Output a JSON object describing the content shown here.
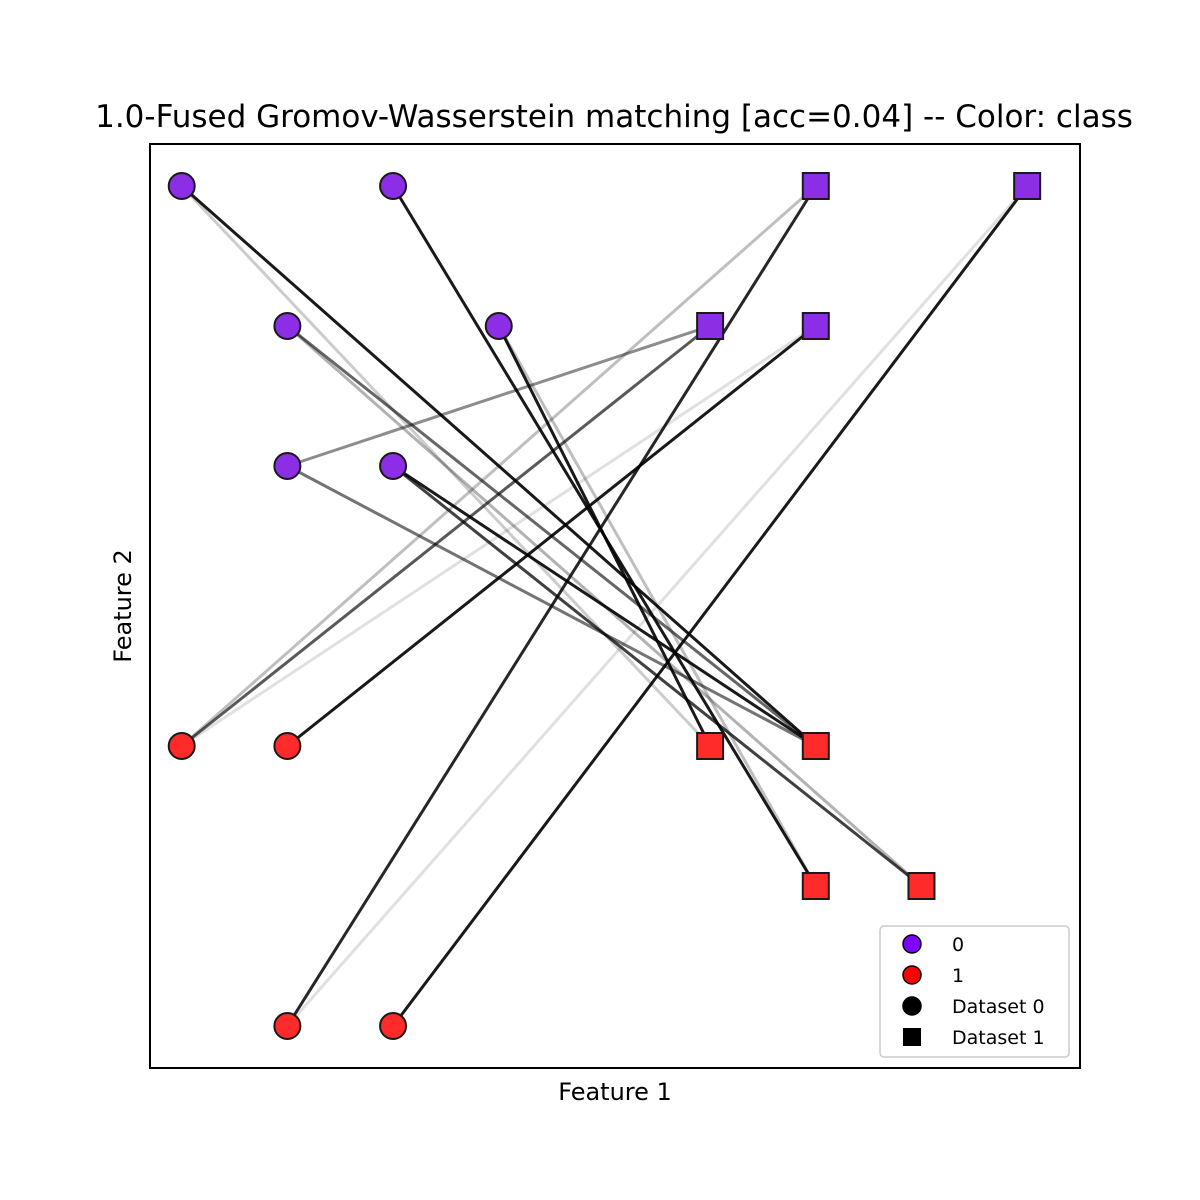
{
  "chart_data": {
    "type": "scatter",
    "title": "1.0-Fused Gromov-Wasserstein matching [acc=0.04] -- Color: class",
    "xlabel": "Feature 1",
    "ylabel": "Feature 2",
    "xlim": [
      -0.3,
      8.5
    ],
    "ylim": [
      -1.3,
      5.3
    ],
    "xticks_visible": false,
    "yticks_visible": false,
    "grid": false,
    "legend_position": "lower-right",
    "class_colors": {
      "0": "#8c2ee6",
      "1": "#ff2b2b"
    },
    "marker_edge_color": "#1a1a1a",
    "legend": [
      {
        "label": "0",
        "marker": "circle",
        "color": "#8000ff"
      },
      {
        "label": "1",
        "marker": "circle",
        "color": "#ff0000"
      },
      {
        "label": "Dataset 0",
        "marker": "circle",
        "color": "#000000"
      },
      {
        "label": "Dataset 1",
        "marker": "square",
        "color": "#000000"
      }
    ],
    "series": [
      {
        "name": "Dataset 0",
        "marker": "circle",
        "points": [
          {
            "x": 0,
            "y": 5,
            "class": 0
          },
          {
            "x": 2,
            "y": 5,
            "class": 0
          },
          {
            "x": 1,
            "y": 4,
            "class": 0
          },
          {
            "x": 3,
            "y": 4,
            "class": 0
          },
          {
            "x": 1,
            "y": 3,
            "class": 0
          },
          {
            "x": 2,
            "y": 3,
            "class": 0
          },
          {
            "x": 0,
            "y": 1,
            "class": 1
          },
          {
            "x": 1,
            "y": 1,
            "class": 1
          },
          {
            "x": 1,
            "y": -1,
            "class": 1
          },
          {
            "x": 2,
            "y": -1,
            "class": 1
          }
        ]
      },
      {
        "name": "Dataset 1",
        "marker": "square",
        "points": [
          {
            "x": 6,
            "y": 5,
            "class": 0
          },
          {
            "x": 8,
            "y": 5,
            "class": 0
          },
          {
            "x": 5,
            "y": 4,
            "class": 0
          },
          {
            "x": 6,
            "y": 4,
            "class": 0
          },
          {
            "x": 5,
            "y": 1,
            "class": 1
          },
          {
            "x": 6,
            "y": 1,
            "class": 1
          },
          {
            "x": 6,
            "y": 0,
            "class": 1
          },
          {
            "x": 7,
            "y": 0,
            "class": 1
          }
        ]
      }
    ],
    "matching": [
      {
        "from": 0,
        "to": 5,
        "weight": 0.9
      },
      {
        "from": 0,
        "to": 4,
        "weight": 0.2
      },
      {
        "from": 1,
        "to": 6,
        "weight": 0.9
      },
      {
        "from": 2,
        "to": 5,
        "weight": 0.6
      },
      {
        "from": 2,
        "to": 7,
        "weight": 0.3
      },
      {
        "from": 3,
        "to": 4,
        "weight": 0.9
      },
      {
        "from": 3,
        "to": 6,
        "weight": 0.25
      },
      {
        "from": 4,
        "to": 2,
        "weight": 0.45
      },
      {
        "from": 4,
        "to": 5,
        "weight": 0.55
      },
      {
        "from": 5,
        "to": 5,
        "weight": 0.9
      },
      {
        "from": 5,
        "to": 7,
        "weight": 0.75
      },
      {
        "from": 6,
        "to": 0,
        "weight": 0.25
      },
      {
        "from": 6,
        "to": 2,
        "weight": 0.65
      },
      {
        "from": 6,
        "to": 3,
        "weight": 0.12
      },
      {
        "from": 7,
        "to": 3,
        "weight": 0.9
      },
      {
        "from": 8,
        "to": 0,
        "weight": 0.85
      },
      {
        "from": 8,
        "to": 1,
        "weight": 0.12
      },
      {
        "from": 9,
        "to": 1,
        "weight": 0.9
      }
    ]
  }
}
